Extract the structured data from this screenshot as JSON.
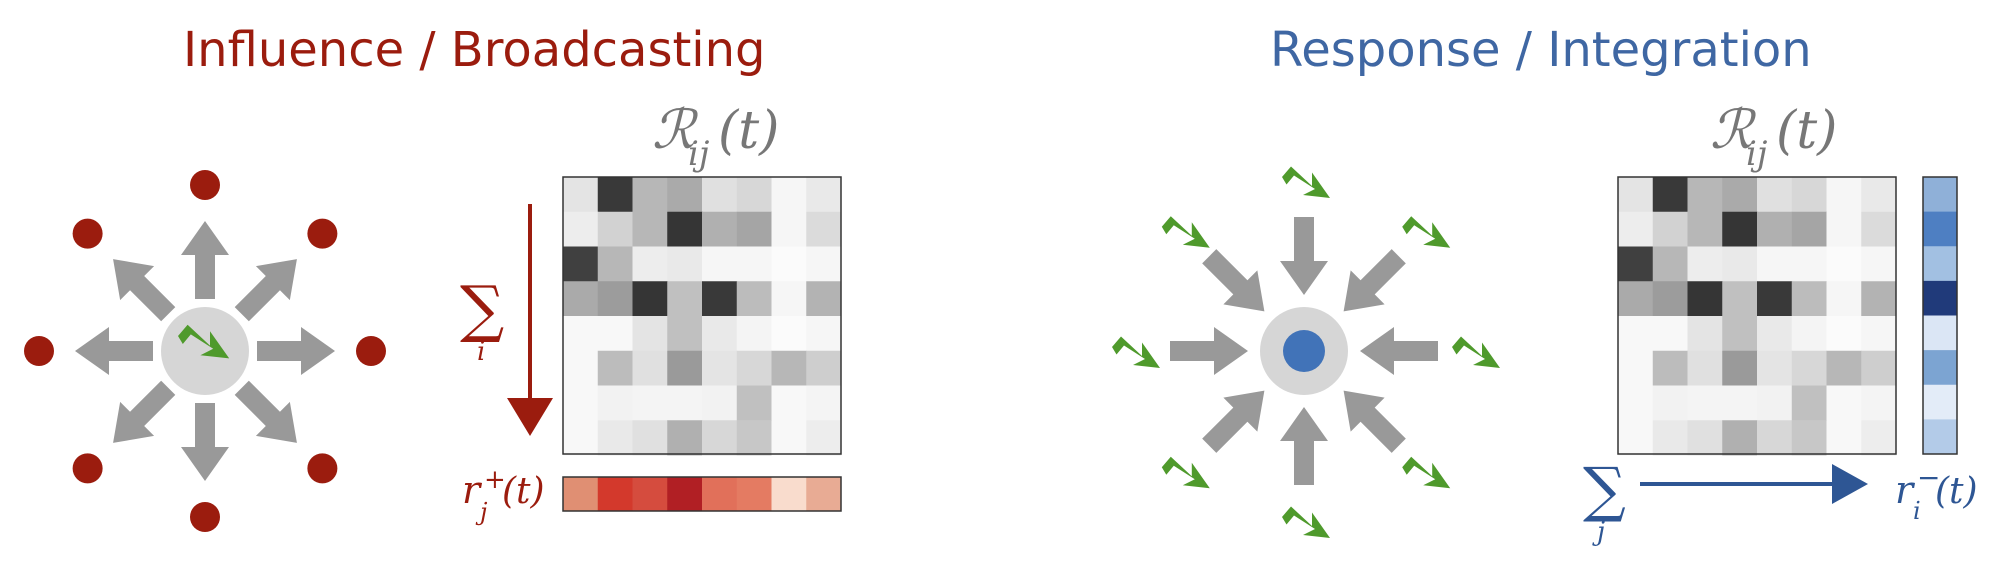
{
  "left_panel": {
    "title": "Influence / Broadcasting",
    "matrix_label": "ℛ",
    "matrix_sub": "ij",
    "matrix_arg": "(t)",
    "sum_symbol": "∑",
    "sum_index": "i",
    "vector_label": "r",
    "vector_sup": "+",
    "vector_sub": "j",
    "vector_arg": "(t)",
    "colors": {
      "title": "#9b1c0e",
      "arrow": "#999999",
      "node": "#9b1c0e",
      "center": "#d6d6d6",
      "bolt": "#4f9a2c"
    }
  },
  "right_panel": {
    "title": "Response / Integration",
    "matrix_label": "ℛ",
    "matrix_sub": "ij",
    "matrix_arg": "(t)",
    "sum_symbol": "∑",
    "sum_index": "j",
    "vector_label": "r",
    "vector_sup": "−",
    "vector_sub": "i",
    "vector_arg": "(t)",
    "colors": {
      "title": "#3f67a3",
      "arrow": "#999999",
      "center_dot": "#4173b8",
      "center": "#d6d6d6",
      "bolt": "#4f9a2c"
    }
  },
  "matrix": [
    [
      0.12,
      0.88,
      0.32,
      0.38,
      0.14,
      0.18,
      0.04,
      0.1
    ],
    [
      0.08,
      0.2,
      0.32,
      0.9,
      0.35,
      0.4,
      0.04,
      0.16
    ],
    [
      0.85,
      0.32,
      0.08,
      0.1,
      0.04,
      0.04,
      0.02,
      0.04
    ],
    [
      0.38,
      0.44,
      0.9,
      0.28,
      0.88,
      0.3,
      0.04,
      0.34
    ],
    [
      0.03,
      0.03,
      0.12,
      0.28,
      0.1,
      0.05,
      0.02,
      0.04
    ],
    [
      0.03,
      0.3,
      0.14,
      0.45,
      0.12,
      0.18,
      0.32,
      0.22
    ],
    [
      0.03,
      0.06,
      0.05,
      0.05,
      0.06,
      0.28,
      0.03,
      0.05
    ],
    [
      0.03,
      0.1,
      0.14,
      0.35,
      0.18,
      0.25,
      0.03,
      0.08
    ]
  ],
  "influence_vector": [
    "#e08f73",
    "#d3392c",
    "#d54c3e",
    "#b11f24",
    "#e1705a",
    "#e47b62",
    "#f9dccd",
    "#e8ab94"
  ],
  "response_vector": [
    "#8fb0d8",
    "#4e7fc2",
    "#a2c0e2",
    "#203a7a",
    "#dbe6f5",
    "#7ca4d2",
    "#e3ecf8",
    "#b3cbe8"
  ]
}
